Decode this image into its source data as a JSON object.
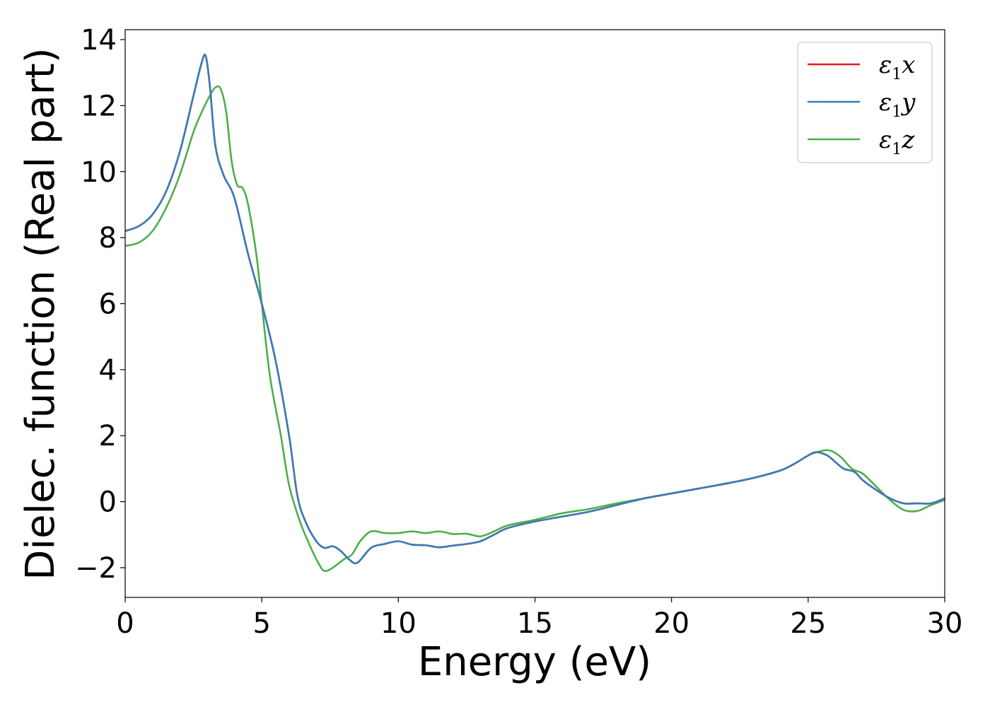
{
  "chart_data": {
    "type": "line",
    "title": "",
    "xlabel": "Energy (eV)",
    "ylabel": "Dielec. function (Real part)",
    "xlim": [
      0,
      30
    ],
    "ylim": [
      -2.9,
      14.3
    ],
    "xticks": [
      0,
      5,
      10,
      15,
      20,
      25,
      30
    ],
    "xtick_labels": [
      "0",
      "5",
      "10",
      "15",
      "20",
      "25",
      "30"
    ],
    "yticks": [
      -2,
      0,
      2,
      4,
      6,
      8,
      10,
      12,
      14
    ],
    "ytick_labels": [
      "−2",
      "0",
      "2",
      "4",
      "6",
      "8",
      "10",
      "12",
      "14"
    ],
    "grid": false,
    "legend_position": "top-right",
    "series": [
      {
        "name": "ε₁x",
        "legend_main": "ε",
        "legend_sub": "1",
        "legend_tail": "x",
        "color": "#e41a1c",
        "x": [
          0,
          0.5,
          1.0,
          1.5,
          2.0,
          2.5,
          2.8,
          2.95,
          3.1,
          3.3,
          3.6,
          4.0,
          4.5,
          5.0,
          5.5,
          6.0,
          6.3,
          6.6,
          7.0,
          7.3,
          7.6,
          7.9,
          8.2,
          8.5,
          9.0,
          9.5,
          10.0,
          10.5,
          11.0,
          11.5,
          12.0,
          12.5,
          13.0,
          13.5,
          14.0,
          15.0,
          16.0,
          17.0,
          18.0,
          19.0,
          20.0,
          21.0,
          22.0,
          23.0,
          24.0,
          24.5,
          25.0,
          25.3,
          25.7,
          26.0,
          26.3,
          26.7,
          27.0,
          27.5,
          28.0,
          28.5,
          29.0,
          29.5,
          30.0
        ],
        "y": [
          8.2,
          8.35,
          8.7,
          9.4,
          10.6,
          12.3,
          13.3,
          13.5,
          12.6,
          10.8,
          9.9,
          9.2,
          7.5,
          6.0,
          4.3,
          2.0,
          0.2,
          -0.6,
          -1.2,
          -1.4,
          -1.35,
          -1.5,
          -1.75,
          -1.85,
          -1.4,
          -1.28,
          -1.2,
          -1.3,
          -1.32,
          -1.38,
          -1.33,
          -1.28,
          -1.2,
          -1.0,
          -0.8,
          -0.6,
          -0.45,
          -0.3,
          -0.1,
          0.1,
          0.25,
          0.4,
          0.55,
          0.72,
          0.95,
          1.15,
          1.4,
          1.5,
          1.4,
          1.2,
          1.0,
          0.9,
          0.65,
          0.35,
          0.1,
          -0.05,
          -0.05,
          -0.05,
          0.1
        ]
      },
      {
        "name": "ε₁y",
        "legend_main": "ε",
        "legend_sub": "1",
        "legend_tail": "y",
        "color": "#377eb8",
        "x": [
          0,
          0.5,
          1.0,
          1.5,
          2.0,
          2.5,
          2.8,
          2.95,
          3.1,
          3.3,
          3.6,
          4.0,
          4.5,
          5.0,
          5.5,
          6.0,
          6.3,
          6.6,
          7.0,
          7.3,
          7.6,
          7.9,
          8.2,
          8.5,
          9.0,
          9.5,
          10.0,
          10.5,
          11.0,
          11.5,
          12.0,
          12.5,
          13.0,
          13.5,
          14.0,
          15.0,
          16.0,
          17.0,
          18.0,
          19.0,
          20.0,
          21.0,
          22.0,
          23.0,
          24.0,
          24.5,
          25.0,
          25.3,
          25.7,
          26.0,
          26.3,
          26.7,
          27.0,
          27.5,
          28.0,
          28.5,
          29.0,
          29.5,
          30.0
        ],
        "y": [
          8.2,
          8.35,
          8.7,
          9.4,
          10.6,
          12.3,
          13.3,
          13.5,
          12.6,
          10.8,
          9.9,
          9.2,
          7.5,
          6.0,
          4.3,
          2.0,
          0.2,
          -0.6,
          -1.2,
          -1.4,
          -1.35,
          -1.5,
          -1.75,
          -1.85,
          -1.4,
          -1.28,
          -1.2,
          -1.3,
          -1.32,
          -1.38,
          -1.33,
          -1.28,
          -1.2,
          -1.0,
          -0.8,
          -0.6,
          -0.45,
          -0.3,
          -0.1,
          0.1,
          0.25,
          0.4,
          0.55,
          0.72,
          0.95,
          1.15,
          1.4,
          1.5,
          1.4,
          1.2,
          1.0,
          0.9,
          0.65,
          0.35,
          0.1,
          -0.05,
          -0.05,
          -0.05,
          0.1
        ]
      },
      {
        "name": "ε₁z",
        "legend_main": "ε",
        "legend_sub": "1",
        "legend_tail": "z",
        "color": "#4daf4a",
        "x": [
          0,
          0.5,
          1.0,
          1.5,
          2.0,
          2.5,
          2.8,
          3.1,
          3.3,
          3.5,
          3.7,
          3.9,
          4.1,
          4.3,
          4.5,
          4.8,
          5.0,
          5.3,
          5.7,
          6.0,
          6.4,
          6.8,
          7.1,
          7.3,
          7.6,
          8.0,
          8.3,
          8.6,
          9.0,
          9.5,
          10.0,
          10.5,
          11.0,
          11.5,
          12.0,
          12.5,
          13.0,
          13.5,
          14.0,
          15.0,
          16.0,
          17.0,
          18.0,
          19.0,
          20.0,
          21.0,
          22.0,
          23.0,
          24.0,
          24.5,
          25.0,
          25.4,
          25.8,
          26.2,
          26.6,
          27.0,
          27.5,
          28.0,
          28.5,
          29.0,
          29.5,
          30.0
        ],
        "y": [
          7.75,
          7.85,
          8.2,
          8.9,
          9.9,
          11.2,
          11.8,
          12.3,
          12.55,
          12.5,
          11.8,
          10.3,
          9.6,
          9.5,
          9.0,
          7.5,
          6.0,
          3.8,
          2.0,
          0.5,
          -0.6,
          -1.4,
          -1.9,
          -2.1,
          -2.0,
          -1.75,
          -1.6,
          -1.2,
          -0.9,
          -0.95,
          -0.95,
          -0.9,
          -0.95,
          -0.9,
          -0.98,
          -0.97,
          -1.05,
          -0.9,
          -0.72,
          -0.55,
          -0.35,
          -0.22,
          -0.05,
          0.1,
          0.25,
          0.4,
          0.55,
          0.72,
          0.95,
          1.15,
          1.4,
          1.52,
          1.55,
          1.35,
          1.0,
          0.85,
          0.45,
          0.05,
          -0.25,
          -0.28,
          -0.1,
          0.05
        ]
      }
    ]
  }
}
